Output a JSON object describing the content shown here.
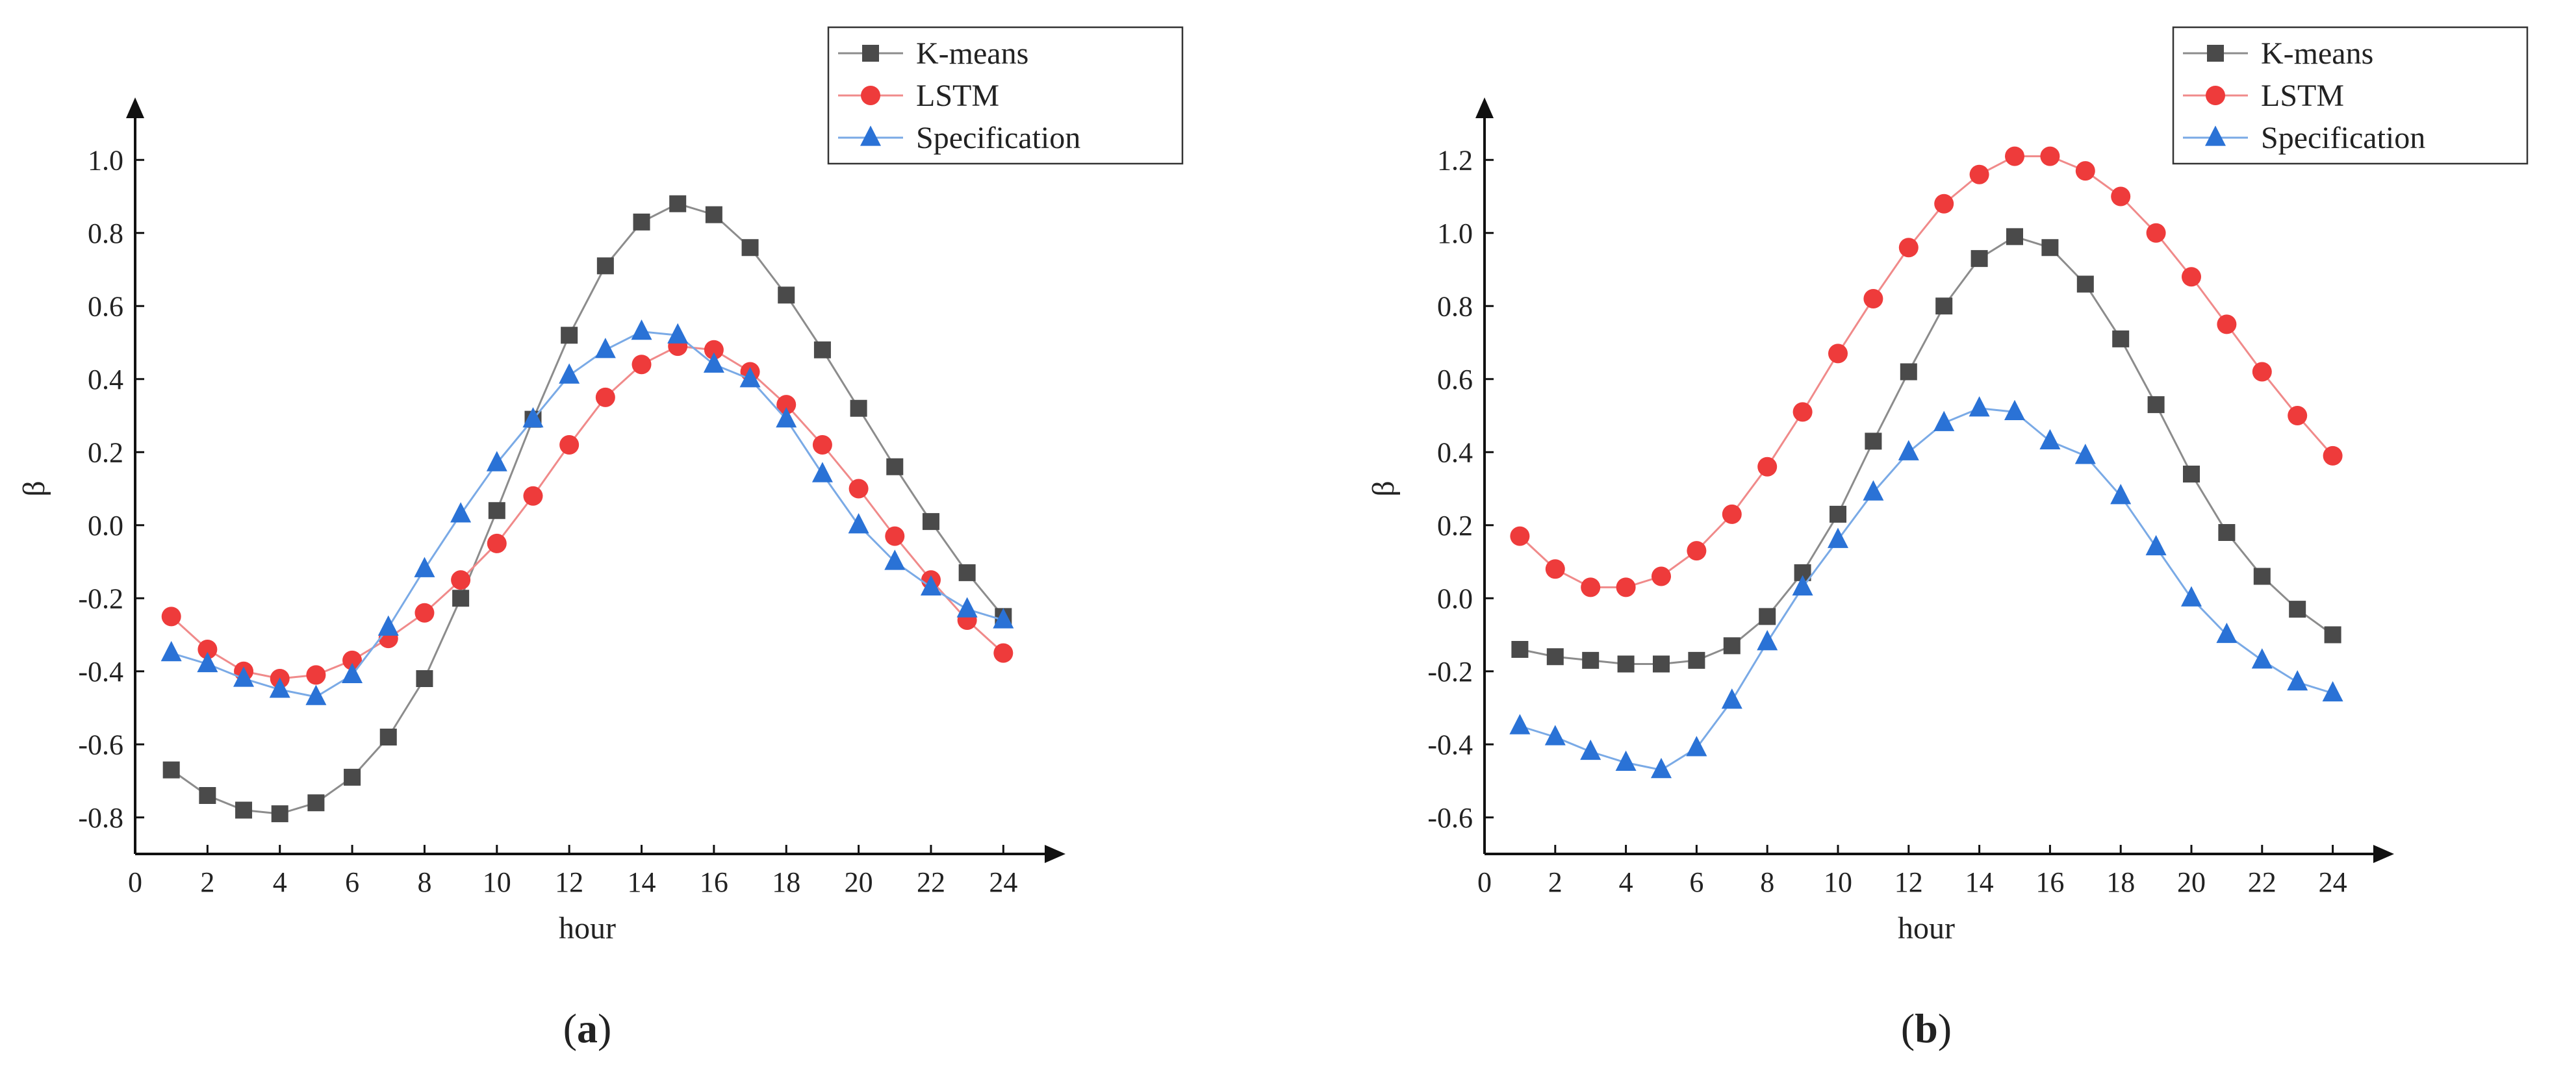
{
  "chart_data": [
    {
      "type": "line",
      "panel_label": "a",
      "xlabel": "hour",
      "ylabel": "β",
      "xlim": [
        0,
        25
      ],
      "ylim": [
        -0.9,
        1.1
      ],
      "x_ticks": [
        0,
        2,
        4,
        6,
        8,
        10,
        12,
        14,
        16,
        18,
        20,
        22,
        24
      ],
      "y_ticks": [
        -0.8,
        -0.6,
        -0.4,
        -0.2,
        0.0,
        0.2,
        0.4,
        0.6,
        0.8,
        1.0
      ],
      "x_tick_labels": [
        "0",
        "2",
        "4",
        "6",
        "8",
        "10",
        "12",
        "14",
        "16",
        "18",
        "20",
        "22",
        "24"
      ],
      "y_tick_labels": [
        "-0.8",
        "-0.6",
        "-0.4",
        "-0.2",
        "0.0",
        "0.2",
        "0.4",
        "0.6",
        "0.8",
        "1.0"
      ],
      "legend_position": "top-right",
      "x": [
        1,
        2,
        3,
        4,
        5,
        6,
        7,
        8,
        9,
        10,
        11,
        12,
        13,
        14,
        15,
        16,
        17,
        18,
        19,
        20,
        21,
        22,
        23,
        24
      ],
      "series": [
        {
          "name": "K-means",
          "marker": "square",
          "color": "#4a4a4a",
          "line_color": "#8c8c8c",
          "values": [
            -0.67,
            -0.74,
            -0.78,
            -0.79,
            -0.76,
            -0.69,
            -0.58,
            -0.42,
            -0.2,
            0.04,
            0.29,
            0.52,
            0.71,
            0.83,
            0.88,
            0.85,
            0.76,
            0.63,
            0.48,
            0.32,
            0.16,
            0.01,
            -0.13,
            -0.25
          ]
        },
        {
          "name": "LSTM",
          "marker": "circle",
          "color": "#ee3b3b",
          "line_color": "#f08a8a",
          "values": [
            -0.25,
            -0.34,
            -0.4,
            -0.42,
            -0.41,
            -0.37,
            -0.31,
            -0.24,
            -0.15,
            -0.05,
            0.08,
            0.22,
            0.35,
            0.44,
            0.49,
            0.48,
            0.42,
            0.33,
            0.22,
            0.1,
            -0.03,
            -0.15,
            -0.26,
            -0.35
          ]
        },
        {
          "name": "Specification",
          "marker": "triangle",
          "color": "#2a72d6",
          "line_color": "#7aaae6",
          "values": [
            -0.35,
            -0.38,
            -0.42,
            -0.45,
            -0.47,
            -0.41,
            -0.28,
            -0.12,
            0.03,
            0.17,
            0.29,
            0.41,
            0.48,
            0.53,
            0.52,
            0.44,
            0.4,
            0.29,
            0.14,
            0.0,
            -0.1,
            -0.17,
            -0.23,
            -0.26
          ]
        }
      ]
    },
    {
      "type": "line",
      "panel_label": "b",
      "xlabel": "hour",
      "ylabel": "β",
      "xlim": [
        0,
        25
      ],
      "ylim": [
        -0.7,
        1.3
      ],
      "x_ticks": [
        0,
        2,
        4,
        6,
        8,
        10,
        12,
        14,
        16,
        18,
        20,
        22,
        24
      ],
      "y_ticks": [
        -0.6,
        -0.4,
        -0.2,
        0.0,
        0.2,
        0.4,
        0.6,
        0.8,
        1.0,
        1.2
      ],
      "x_tick_labels": [
        "0",
        "2",
        "4",
        "6",
        "8",
        "10",
        "12",
        "14",
        "16",
        "18",
        "20",
        "22",
        "24"
      ],
      "y_tick_labels": [
        "-0.6",
        "-0.4",
        "-0.2",
        "0.0",
        "0.2",
        "0.4",
        "0.6",
        "0.8",
        "1.0",
        "1.2"
      ],
      "legend_position": "top-right",
      "x": [
        1,
        2,
        3,
        4,
        5,
        6,
        7,
        8,
        9,
        10,
        11,
        12,
        13,
        14,
        15,
        16,
        17,
        18,
        19,
        20,
        21,
        22,
        23,
        24
      ],
      "series": [
        {
          "name": "K-means",
          "marker": "square",
          "color": "#4a4a4a",
          "line_color": "#8c8c8c",
          "values": [
            -0.14,
            -0.16,
            -0.17,
            -0.18,
            -0.18,
            -0.17,
            -0.13,
            -0.05,
            0.07,
            0.23,
            0.43,
            0.62,
            0.8,
            0.93,
            0.99,
            0.96,
            0.86,
            0.71,
            0.53,
            0.34,
            0.18,
            0.06,
            -0.03,
            -0.1
          ]
        },
        {
          "name": "LSTM",
          "marker": "circle",
          "color": "#ee3b3b",
          "line_color": "#f08a8a",
          "values": [
            0.17,
            0.08,
            0.03,
            0.03,
            0.06,
            0.13,
            0.23,
            0.36,
            0.51,
            0.67,
            0.82,
            0.96,
            1.08,
            1.16,
            1.21,
            1.21,
            1.17,
            1.1,
            1.0,
            0.88,
            0.75,
            0.62,
            0.5,
            0.39
          ]
        },
        {
          "name": "Specification",
          "marker": "triangle",
          "color": "#2a72d6",
          "line_color": "#7aaae6",
          "values": [
            -0.35,
            -0.38,
            -0.42,
            -0.45,
            -0.47,
            -0.41,
            -0.28,
            -0.12,
            0.03,
            0.16,
            0.29,
            0.4,
            0.48,
            0.52,
            0.51,
            0.43,
            0.39,
            0.28,
            0.14,
            0.0,
            -0.1,
            -0.17,
            -0.23,
            -0.26
          ]
        }
      ]
    }
  ]
}
